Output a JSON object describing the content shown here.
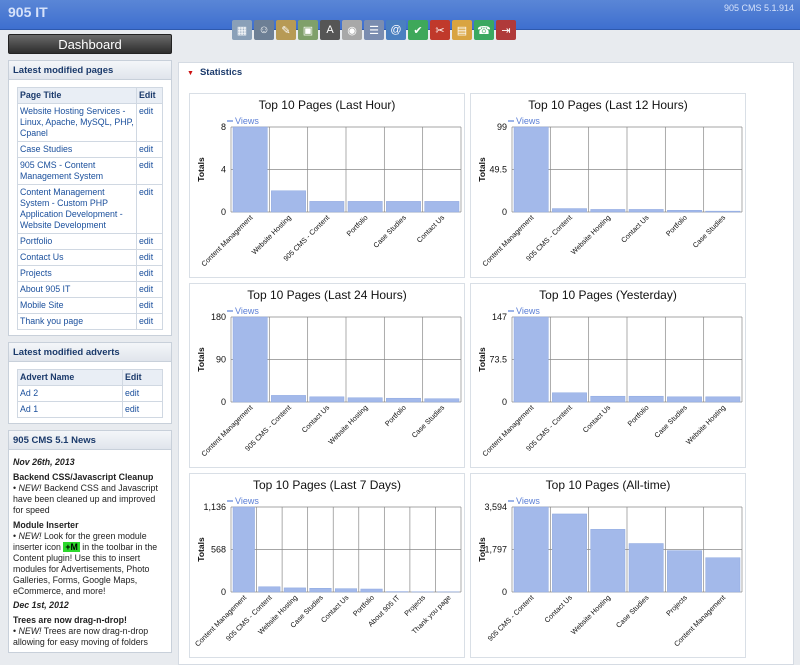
{
  "app": {
    "title": "905 IT",
    "version": "905 CMS 5.1.914"
  },
  "toolbar": {
    "icons": [
      "sitemap-icon",
      "users-icon",
      "edit-icon",
      "image-add-icon",
      "font-add-icon",
      "database-icon",
      "list-icon",
      "email-icon",
      "calendar-check-icon",
      "tools-icon",
      "calendar-icon",
      "phone-icon",
      "exit-icon"
    ]
  },
  "sidebar": {
    "dashboard": "Dashboard",
    "pages": {
      "heading": "Latest modified pages",
      "col_title": "Page Title",
      "col_edit": "Edit",
      "rows": [
        {
          "title": "Website Hosting Services - Linux, Apache, MySQL, PHP, Cpanel",
          "edit": "edit"
        },
        {
          "title": "Case Studies",
          "edit": "edit"
        },
        {
          "title": "905 CMS - Content Management System",
          "edit": "edit"
        },
        {
          "title": "Content Management System - Custom PHP Application Development - Website Development",
          "edit": "edit"
        },
        {
          "title": "Portfolio",
          "edit": "edit"
        },
        {
          "title": "Contact Us",
          "edit": "edit"
        },
        {
          "title": "Projects",
          "edit": "edit"
        },
        {
          "title": "About 905 IT",
          "edit": "edit"
        },
        {
          "title": "Mobile Site",
          "edit": "edit"
        },
        {
          "title": "Thank you page",
          "edit": "edit"
        }
      ]
    },
    "adverts": {
      "heading": "Latest modified adverts",
      "col_name": "Advert Name",
      "col_edit": "Edit",
      "rows": [
        {
          "name": "Ad 2",
          "edit": "edit"
        },
        {
          "name": "Ad 1",
          "edit": "edit"
        }
      ]
    },
    "news": {
      "heading": "905 CMS 5.1 News",
      "date1": "Nov 26th, 2013",
      "t1": "Backend CSS/Javascript Cleanup",
      "new": "NEW!",
      "b1": "Backend CSS and Javascript have been cleaned up and improved for speed",
      "t2": "Module Inserter",
      "b2a": "Look for the green module inserter icon",
      "badge": "+M",
      "b2b": "in the toolbar in the Content plugin! Use this to insert modules for Advertisements, Photo Galleries, Forms, Google Maps, eCommerce, and more!",
      "date2": "Dec 1st, 2012",
      "t3": "Trees are now drag-n-drop!",
      "b3": "Trees are now drag-n-drop allowing for easy moving of folders"
    }
  },
  "main": {
    "heading": "Statistics"
  },
  "chart_data": [
    {
      "type": "bar",
      "title": "Top 10 Pages (Last Hour)",
      "ylabel": "Totals",
      "series_name": "Views",
      "ticks": [
        "8",
        "4",
        "0"
      ],
      "ylim": [
        0,
        8
      ],
      "categories": [
        "Content Management",
        "Website Hosting",
        "905 CMS - Content",
        "Portfolio",
        "Case Studies",
        "Contact Us"
      ],
      "values": [
        8,
        2,
        1,
        1,
        1,
        1
      ]
    },
    {
      "type": "bar",
      "title": "Top 10 Pages (Last 12 Hours)",
      "ylabel": "Totals",
      "series_name": "Views",
      "ticks": [
        "99",
        "49.5",
        "0"
      ],
      "ylim": [
        0,
        99
      ],
      "categories": [
        "Content Management",
        "905 CMS - Content",
        "Website Hosting",
        "Contact Us",
        "Portfolio",
        "Case Studies"
      ],
      "values": [
        99,
        4,
        3,
        3,
        2,
        1
      ]
    },
    {
      "type": "bar",
      "title": "Top 10 Pages (Last 24 Hours)",
      "ylabel": "Totals",
      "series_name": "Views",
      "ticks": [
        "180",
        "90",
        "0"
      ],
      "ylim": [
        0,
        180
      ],
      "categories": [
        "Content Management",
        "905 CMS - Content",
        "Contact Us",
        "Website Hosting",
        "Portfolio",
        "Case Studies"
      ],
      "values": [
        180,
        14,
        11,
        9,
        8,
        7
      ]
    },
    {
      "type": "bar",
      "title": "Top 10 Pages (Yesterday)",
      "ylabel": "Totals",
      "series_name": "Views",
      "ticks": [
        "147",
        "73.5",
        "0"
      ],
      "ylim": [
        0,
        147
      ],
      "categories": [
        "Content Management",
        "905 CMS - Content",
        "Contact Us",
        "Portfolio",
        "Case Studies",
        "Website Hosting"
      ],
      "values": [
        147,
        16,
        10,
        10,
        9,
        9
      ]
    },
    {
      "type": "bar",
      "title": "Top 10 Pages (Last 7 Days)",
      "ylabel": "Totals",
      "series_name": "Views",
      "ticks": [
        "1,136",
        "568",
        "0"
      ],
      "ylim": [
        0,
        1136
      ],
      "categories": [
        "Content Management",
        "905 CMS - Content",
        "Website Hosting",
        "Case Studies",
        "Contact Us",
        "Portfolio",
        "About 905 IT",
        "Projects",
        "Thank you page"
      ],
      "values": [
        1136,
        70,
        55,
        50,
        45,
        40,
        5,
        3,
        2
      ]
    },
    {
      "type": "bar",
      "title": "Top 10 Pages (All-time)",
      "ylabel": "Totals",
      "series_name": "Views",
      "ticks": [
        "3,594",
        "1,797",
        "0"
      ],
      "ylim": [
        0,
        3594
      ],
      "categories": [
        "905 CMS - Content",
        "Contact Us",
        "Website Hosting",
        "Case Studies",
        "Projects",
        "Content Management"
      ],
      "values": [
        3594,
        3300,
        2650,
        2050,
        1750,
        1450
      ]
    }
  ]
}
